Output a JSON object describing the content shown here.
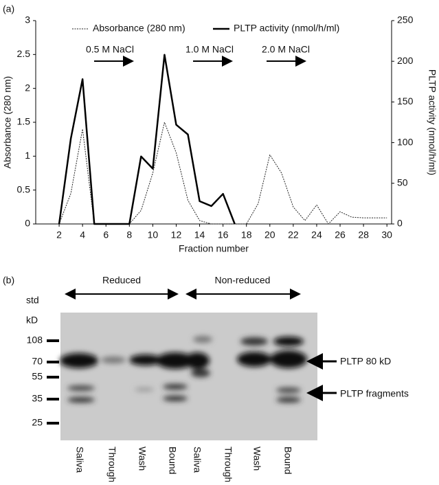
{
  "chart_data": {
    "type": "line",
    "panel_label": "(a)",
    "x_label": "Fraction number",
    "y_label": "Absorbance (280 nm)",
    "y2_label": "PLTP activity (nmol/h/ml)",
    "x": [
      2,
      3,
      4,
      5,
      6,
      7,
      8,
      9,
      10,
      11,
      12,
      13,
      14,
      15,
      16,
      17,
      18,
      19,
      20,
      21,
      22,
      23,
      24,
      25,
      26,
      27,
      28,
      29,
      30
    ],
    "series": [
      {
        "name": "Absorbance (280 nm)",
        "color": "#222222",
        "style": "dotted",
        "values": [
          0,
          0.45,
          1.4,
          0,
          0,
          0,
          0,
          0.2,
          0.75,
          1.5,
          1.05,
          0.35,
          0.05,
          0,
          0,
          0,
          0,
          0.3,
          1.02,
          0.75,
          0.25,
          0.05,
          0.28,
          0,
          0.18,
          0.1,
          0.09,
          0.09,
          0.09
        ]
      },
      {
        "name": "PLTP activity (nmol/h/ml)",
        "color": "#000000",
        "style": "solid",
        "axis": "y2",
        "values": [
          0,
          105,
          178,
          0,
          0,
          0,
          0,
          83,
          68,
          208,
          122,
          110,
          28,
          22,
          37,
          0,
          null,
          null,
          null,
          null,
          null,
          null,
          null,
          null,
          null,
          null,
          null,
          null,
          null
        ]
      }
    ],
    "xlim": [
      0,
      30.4
    ],
    "xticks": [
      2,
      4,
      6,
      8,
      10,
      12,
      14,
      16,
      18,
      20,
      22,
      24,
      26,
      28,
      30
    ],
    "ylim": [
      0,
      3
    ],
    "yticks": [
      0,
      0.5,
      1,
      1.5,
      2,
      2.5,
      3
    ],
    "y2lim": [
      0,
      250
    ],
    "y2ticks": [
      0,
      50,
      100,
      150,
      200,
      250
    ],
    "grid": false,
    "legend": "top",
    "annotations": [
      "0.5 M NaCl",
      "1.0 M NaCl",
      "2.0 M NaCl"
    ]
  },
  "blot": {
    "panel_label": "(b)",
    "groups": [
      "Reduced",
      "Non-reduced"
    ],
    "std_label": "std",
    "unit_label": "kD",
    "markers": [
      108,
      70,
      55,
      35,
      25
    ],
    "band_labels": [
      "PLTP 80 kD",
      "PLTP fragments"
    ],
    "lanes": [
      "Saliva",
      "Through",
      "Wash",
      "Bound",
      "Saliva",
      "Through",
      "Wash",
      "Bound"
    ]
  }
}
